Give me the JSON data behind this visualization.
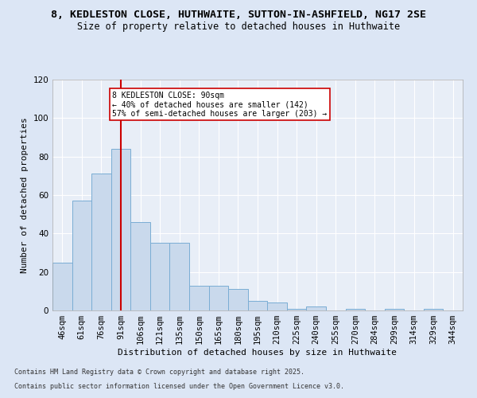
{
  "title1": "8, KEDLESTON CLOSE, HUTHWAITE, SUTTON-IN-ASHFIELD, NG17 2SE",
  "title2": "Size of property relative to detached houses in Huthwaite",
  "xlabel": "Distribution of detached houses by size in Huthwaite",
  "ylabel": "Number of detached properties",
  "categories": [
    "46sqm",
    "61sqm",
    "76sqm",
    "91sqm",
    "106sqm",
    "121sqm",
    "135sqm",
    "150sqm",
    "165sqm",
    "180sqm",
    "195sqm",
    "210sqm",
    "225sqm",
    "240sqm",
    "255sqm",
    "270sqm",
    "284sqm",
    "299sqm",
    "314sqm",
    "329sqm",
    "344sqm"
  ],
  "values": [
    25,
    57,
    71,
    84,
    46,
    35,
    35,
    13,
    13,
    11,
    5,
    4,
    1,
    2,
    0,
    1,
    0,
    1,
    0,
    1,
    0
  ],
  "bar_color": "#c9d9ec",
  "bar_edge_color": "#7aadd4",
  "vline_x_index": 3,
  "vline_color": "#cc0000",
  "annotation_text": "8 KEDLESTON CLOSE: 90sqm\n← 40% of detached houses are smaller (142)\n57% of semi-detached houses are larger (203) →",
  "annotation_box_color": "#ffffff",
  "annotation_box_edge": "#cc0000",
  "ylim": [
    0,
    120
  ],
  "yticks": [
    0,
    20,
    40,
    60,
    80,
    100,
    120
  ],
  "background_color": "#dce6f5",
  "plot_bg_color": "#e8eef7",
  "grid_color": "#ffffff",
  "footer1": "Contains HM Land Registry data © Crown copyright and database right 2025.",
  "footer2": "Contains public sector information licensed under the Open Government Licence v3.0.",
  "title_fontsize": 9.5,
  "subtitle_fontsize": 8.5,
  "axis_label_fontsize": 8,
  "tick_fontsize": 7.5,
  "footer_fontsize": 6
}
